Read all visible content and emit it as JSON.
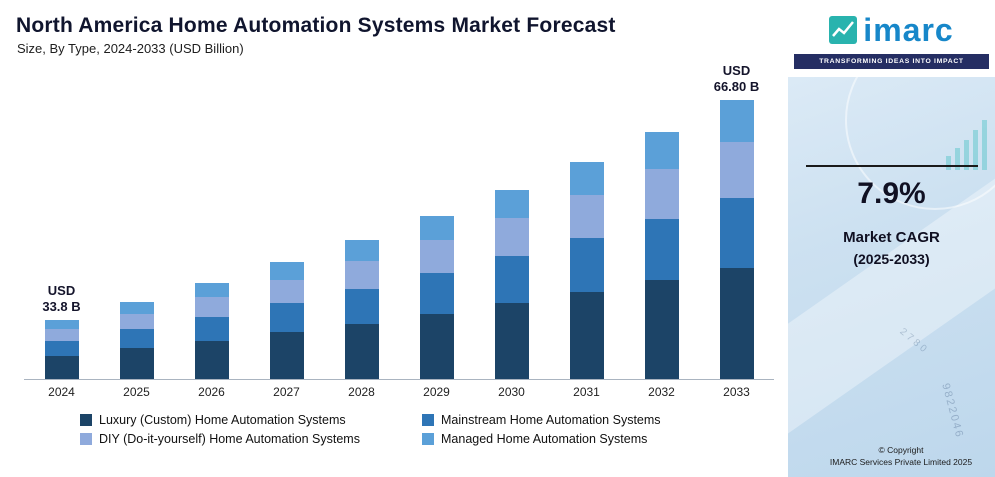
{
  "header": {
    "title": "North America Home Automation Systems Market Forecast",
    "subtitle": "Size, By Type, 2024-2033 (USD Billion)"
  },
  "chart_data": {
    "type": "bar",
    "stacked": true,
    "title": "North America Home Automation Systems Market Forecast",
    "xlabel": "",
    "ylabel": "USD Billion",
    "ylim": [
      25,
      70
    ],
    "grid": false,
    "legend_position": "bottom",
    "categories": [
      "2024",
      "2025",
      "2026",
      "2027",
      "2028",
      "2029",
      "2030",
      "2031",
      "2032",
      "2033"
    ],
    "series": [
      {
        "name": "Luxury (Custom) Home Automation Systems",
        "color": "#1c4467",
        "values": [
          13.5,
          14.6,
          15.8,
          17.0,
          18.3,
          19.8,
          21.3,
          23.0,
          24.8,
          26.7
        ]
      },
      {
        "name": "Mainstream Home Automation Systems",
        "color": "#2e75b6",
        "values": [
          8.5,
          9.1,
          9.8,
          10.6,
          11.5,
          12.4,
          13.4,
          14.4,
          15.5,
          16.7
        ]
      },
      {
        "name": "DIY (Do-it-yourself) Home Automation Systems",
        "color": "#8faadc",
        "values": [
          6.8,
          7.3,
          7.9,
          8.5,
          9.2,
          9.9,
          10.7,
          11.5,
          12.4,
          13.4
        ]
      },
      {
        "name": "Managed Home Automation Systems",
        "color": "#5ba0d8",
        "values": [
          5.0,
          5.5,
          5.9,
          6.4,
          6.8,
          7.4,
          8.0,
          8.7,
          9.4,
          10.0
        ]
      }
    ],
    "totals": [
      33.8,
      36.5,
      39.4,
      42.5,
      45.8,
      49.5,
      53.4,
      57.6,
      62.1,
      66.8
    ],
    "annotations": [
      {
        "category": "2024",
        "lines": [
          "USD",
          "33.8 B"
        ]
      },
      {
        "category": "2033",
        "lines": [
          "USD",
          "66.80 B"
        ]
      }
    ]
  },
  "right_panel": {
    "logo_text": "imarc",
    "tagline": "TRANSFORMING IDEAS INTO IMPACT",
    "cagr_value": "7.9%",
    "cagr_label": "Market CAGR",
    "cagr_sublabel": "(2025-2033)",
    "copyright_line1": "© Copyright",
    "copyright_line2": "IMARC Services Private Limited 2025",
    "decorative_numbers": [
      "9822046",
      "2780"
    ]
  }
}
